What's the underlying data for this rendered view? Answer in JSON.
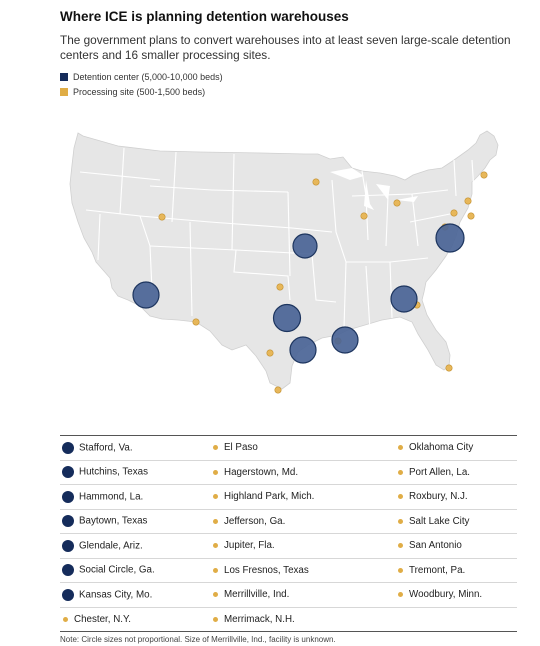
{
  "title": "Where ICE is planning detention warehouses",
  "subtitle": "The government plans to convert warehouses into at least seven large-scale detention centers and 16 smaller processing sites.",
  "legend": {
    "detention": {
      "label": "Detention center (5,000-10,000 beds)",
      "color": "#152c5b"
    },
    "processing": {
      "label": "Processing site (500-1,500 beds)",
      "color": "#e0ad46"
    }
  },
  "colors": {
    "land": "#e8e8e8",
    "borders": "#ffffff",
    "large_marker_fill": "#4a6496",
    "large_marker_stroke": "#1d355f",
    "small_marker": "#e7b75a"
  },
  "sites": {
    "col1": [
      {
        "name": "Stafford, Va.",
        "type": "detention"
      },
      {
        "name": "Hutchins, Texas",
        "type": "detention"
      },
      {
        "name": "Hammond, La.",
        "type": "detention"
      },
      {
        "name": "Baytown, Texas",
        "type": "detention"
      },
      {
        "name": "Glendale, Ariz.",
        "type": "detention"
      },
      {
        "name": "Social Circle, Ga.",
        "type": "detention"
      },
      {
        "name": "Kansas City, Mo.",
        "type": "detention"
      },
      {
        "name": "Chester, N.Y.",
        "type": "processing"
      }
    ],
    "col2": [
      {
        "name": "El Paso",
        "type": "processing"
      },
      {
        "name": "Hagerstown, Md.",
        "type": "processing"
      },
      {
        "name": "Highland Park, Mich.",
        "type": "processing"
      },
      {
        "name": "Jefferson, Ga.",
        "type": "processing"
      },
      {
        "name": "Jupiter, Fla.",
        "type": "processing"
      },
      {
        "name": "Los Fresnos, Texas",
        "type": "processing"
      },
      {
        "name": "Merrillville, Ind.",
        "type": "processing"
      },
      {
        "name": "Merrimack, N.H.",
        "type": "processing"
      }
    ],
    "col3": [
      {
        "name": "Oklahoma City",
        "type": "processing"
      },
      {
        "name": "Port Allen, La.",
        "type": "processing"
      },
      {
        "name": "Roxbury, N.J.",
        "type": "processing"
      },
      {
        "name": "Salt Lake City",
        "type": "processing"
      },
      {
        "name": "San Antonio",
        "type": "processing"
      },
      {
        "name": "Tremont, Pa.",
        "type": "processing"
      },
      {
        "name": "Woodbury, Minn.",
        "type": "processing"
      }
    ]
  },
  "note": "Note: Circle sizes not proportional. Size of Merrillville, Ind., facility is unknown."
}
